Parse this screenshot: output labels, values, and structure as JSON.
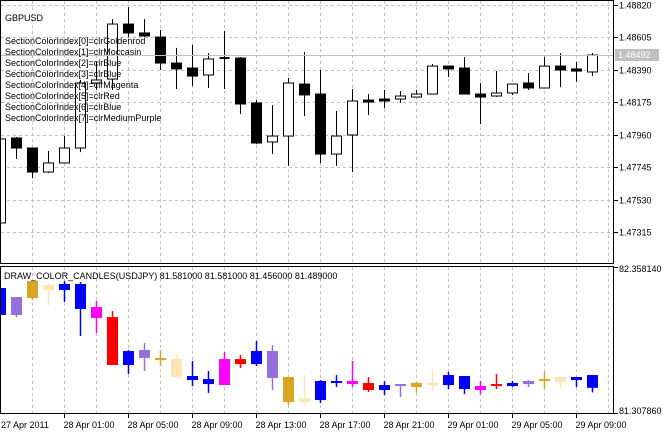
{
  "main_chart": {
    "symbol": "GBPUSD",
    "candle_style": "black-white",
    "bull_color": "#FFFFFF",
    "bear_color": "#000000",
    "current_price": "1.48492",
    "price_axis": [
      "1.48820",
      "1.48605",
      "1.48390",
      "1.48175",
      "1.47960",
      "1.47745",
      "1.47530",
      "1.47315"
    ],
    "info_lines": [
      "SectionColorIndex[0]=clrGoldenrod",
      "SectionColorIndex[1]=clrMoccasin",
      "SectionColorIndex[2]=clrBlue",
      "SectionColorIndex[3]=clrBlue",
      "SectionColorIndex[4]=clrMagenta",
      "SectionColorIndex[5]=clrRed",
      "SectionColorIndex[6]=clrBlue",
      "SectionColorIndex[7]=clrMediumPurple"
    ],
    "ohlc": [
      [
        1.47378,
        1.47934,
        1.47378,
        1.47934
      ],
      [
        1.4794,
        1.47947,
        1.47801,
        1.47874
      ],
      [
        1.47874,
        1.47874,
        1.47675,
        1.47715
      ],
      [
        1.47715,
        1.47854,
        1.47709,
        1.47775
      ],
      [
        1.47775,
        1.47953,
        1.47775,
        1.47874
      ],
      [
        1.47874,
        1.48324,
        1.47847,
        1.48304
      ],
      [
        1.48304,
        1.48443,
        1.48258,
        1.48324
      ],
      [
        1.4833,
        1.48727,
        1.48258,
        1.48694
      ],
      [
        1.48694,
        1.48807,
        1.48608,
        1.48635
      ],
      [
        1.48635,
        1.48727,
        1.48608,
        1.48615
      ],
      [
        1.48608,
        1.48655,
        1.4839,
        1.48436
      ],
      [
        1.48436,
        1.48536,
        1.48264,
        1.48397
      ],
      [
        1.48403,
        1.48555,
        1.48284,
        1.4835
      ],
      [
        1.48357,
        1.48502,
        1.48271,
        1.48463
      ],
      [
        1.48469,
        1.48648,
        1.48264,
        1.48469
      ],
      [
        1.48469,
        1.48476,
        1.48099,
        1.48165
      ],
      [
        1.48172,
        1.48191,
        1.479,
        1.47907
      ],
      [
        1.47914,
        1.48158,
        1.47834,
        1.47953
      ],
      [
        1.47953,
        1.48337,
        1.47755,
        1.48304
      ],
      [
        1.48297,
        1.48509,
        1.48086,
        1.48225
      ],
      [
        1.48231,
        1.4839,
        1.47775,
        1.47834
      ],
      [
        1.47834,
        1.48119,
        1.47755,
        1.47953
      ],
      [
        1.4796,
        1.48264,
        1.47715,
        1.48185
      ],
      [
        1.48191,
        1.48231,
        1.48092,
        1.48178
      ],
      [
        1.48198,
        1.48258,
        1.48138,
        1.48185
      ],
      [
        1.48198,
        1.48251,
        1.48172,
        1.48218
      ],
      [
        1.48211,
        1.48258,
        1.48211,
        1.48231
      ],
      [
        1.48231,
        1.4843,
        1.48231,
        1.48416
      ],
      [
        1.48416,
        1.48416,
        1.48344,
        1.48397
      ],
      [
        1.48403,
        1.48476,
        1.48231,
        1.48231
      ],
      [
        1.48231,
        1.48304,
        1.48033,
        1.48211
      ],
      [
        1.48218,
        1.48383,
        1.48211,
        1.48238
      ],
      [
        1.48238,
        1.48297,
        1.48225,
        1.48297
      ],
      [
        1.48304,
        1.4837,
        1.48258,
        1.48271
      ],
      [
        1.48271,
        1.48476,
        1.48271,
        1.48416
      ],
      [
        1.48416,
        1.48502,
        1.48277,
        1.4839
      ],
      [
        1.48397,
        1.48443,
        1.48311,
        1.48383
      ],
      [
        1.48377,
        1.48502,
        1.4835,
        1.48489
      ]
    ]
  },
  "indicator": {
    "title": "DRAW_COLOR_CANDLES(USDJPY) 81.581000 81.581000 81.456000 81.489000",
    "axis_max": "82.358140",
    "axis_min": "81.307860",
    "colors": {
      "Goldenrod": "#DAA520",
      "Moccasin": "#FFE4B5",
      "Blue": "#0000FF",
      "Magenta": "#FF00FF",
      "Red": "#FF0000",
      "MediumPurple": "#9370DB"
    },
    "candle_colors": [
      "Blue",
      "MediumPurple",
      "Goldenrod",
      "Moccasin",
      "Blue",
      "Blue",
      "Magenta",
      "Red",
      "Blue",
      "MediumPurple",
      "Goldenrod",
      "Moccasin",
      "Blue",
      "Blue",
      "Magenta",
      "Red",
      "Blue",
      "MediumPurple",
      "Goldenrod",
      "Moccasin",
      "Blue",
      "Blue",
      "Magenta",
      "Red",
      "Blue",
      "MediumPurple",
      "Goldenrod",
      "Moccasin",
      "Blue",
      "Blue",
      "Magenta",
      "Red",
      "Blue",
      "MediumPurple",
      "Goldenrod",
      "Moccasin",
      "Blue",
      "Blue"
    ],
    "ohlc": [
      [
        82.207,
        82.207,
        82.013,
        82.013
      ],
      [
        82.142,
        82.142,
        81.998,
        82.013
      ],
      [
        82.257,
        82.257,
        82.121,
        82.135
      ],
      [
        82.229,
        82.243,
        82.085,
        82.193
      ],
      [
        82.236,
        82.257,
        82.106,
        82.193
      ],
      [
        82.236,
        82.25,
        81.862,
        82.056
      ],
      [
        82.07,
        82.114,
        81.883,
        81.991
      ],
      [
        81.998,
        82.042,
        81.653,
        81.653
      ],
      [
        81.754,
        81.761,
        81.588,
        81.653
      ],
      [
        81.761,
        81.811,
        81.61,
        81.704
      ],
      [
        81.696,
        81.761,
        81.646,
        81.696
      ],
      [
        81.696,
        81.732,
        81.567,
        81.567
      ],
      [
        81.574,
        81.682,
        81.502,
        81.545
      ],
      [
        81.552,
        81.61,
        81.452,
        81.516
      ],
      [
        81.696,
        81.747,
        81.509,
        81.509
      ],
      [
        81.696,
        81.725,
        81.632,
        81.66
      ],
      [
        81.754,
        81.826,
        81.646,
        81.66
      ],
      [
        81.754,
        81.797,
        81.473,
        81.56
      ],
      [
        81.567,
        81.567,
        81.365,
        81.387
      ],
      [
        81.416,
        81.581,
        81.365,
        81.387
      ],
      [
        81.538,
        81.545,
        81.38,
        81.401
      ],
      [
        81.531,
        81.581,
        81.495,
        81.531
      ],
      [
        81.538,
        81.682,
        81.495,
        81.516
      ],
      [
        81.524,
        81.567,
        81.459,
        81.473
      ],
      [
        81.509,
        81.538,
        81.437,
        81.473
      ],
      [
        81.509,
        81.516,
        81.423,
        81.495
      ],
      [
        81.524,
        81.531,
        81.452,
        81.495
      ],
      [
        81.516,
        81.624,
        81.466,
        81.502
      ],
      [
        81.581,
        81.603,
        81.48,
        81.509
      ],
      [
        81.574,
        81.574,
        81.445,
        81.48
      ],
      [
        81.502,
        81.538,
        81.445,
        81.473
      ],
      [
        81.509,
        81.588,
        81.48,
        81.495
      ],
      [
        81.524,
        81.538,
        81.495,
        81.502
      ],
      [
        81.538,
        81.545,
        81.495,
        81.516
      ],
      [
        81.545,
        81.603,
        81.488,
        81.531
      ],
      [
        81.567,
        81.567,
        81.488,
        81.531
      ],
      [
        81.567,
        81.567,
        81.495,
        81.545
      ],
      [
        81.581,
        81.581,
        81.456,
        81.489
      ]
    ]
  },
  "time_axis": [
    "27 Apr 2011",
    "28 Apr 01:00",
    "28 Apr 05:00",
    "28 Apr 09:00",
    "28 Apr 13:00",
    "28 Apr 17:00",
    "28 Apr 21:00",
    "29 Apr 01:00",
    "29 Apr 05:00",
    "29 Apr 09:00"
  ]
}
